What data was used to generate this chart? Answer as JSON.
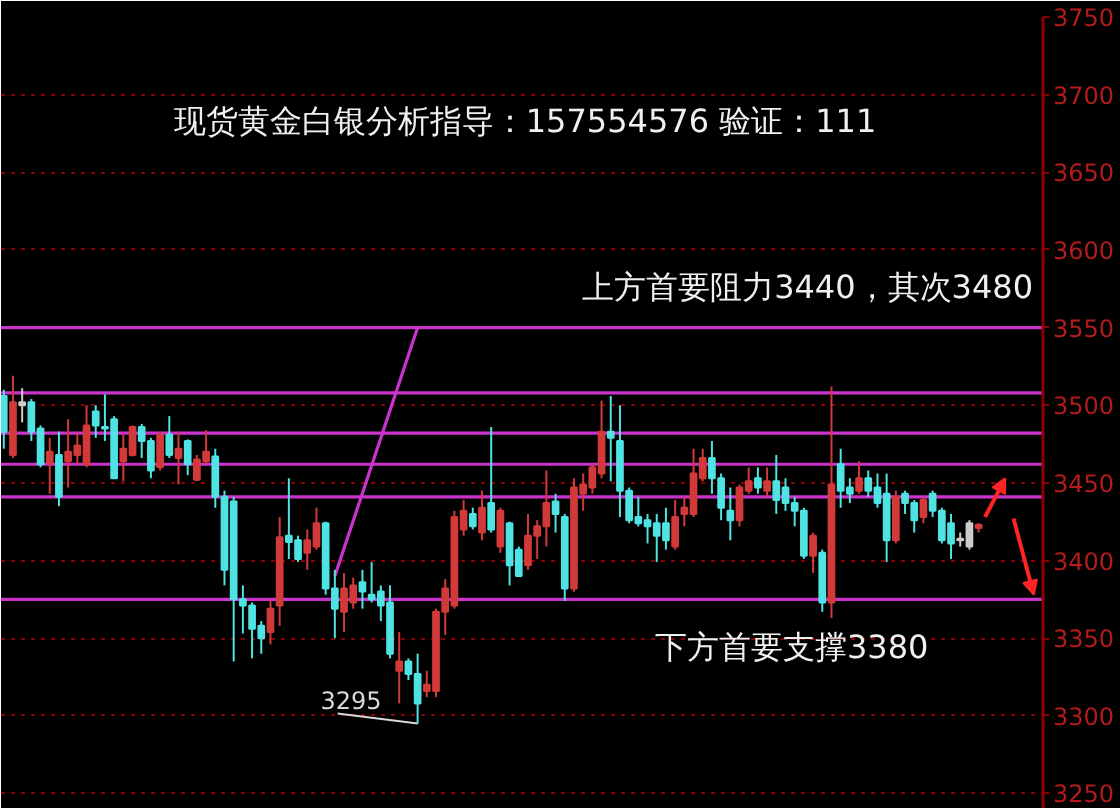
{
  "chart_data": {
    "type": "candlestick",
    "categories": [
      null,
      null,
      null,
      null,
      null,
      null,
      null,
      null,
      null,
      null,
      null,
      null,
      null,
      null,
      null,
      null,
      null,
      null,
      null,
      null,
      null,
      null,
      null,
      null,
      null,
      null,
      null,
      null,
      null,
      null,
      null,
      null,
      null,
      null,
      null,
      null,
      null,
      null,
      null,
      null,
      null,
      null,
      null,
      null,
      null,
      null,
      null,
      null,
      null,
      null,
      null,
      null,
      null,
      null,
      null,
      null,
      null,
      null,
      null,
      null,
      null,
      null,
      null,
      null,
      null,
      null,
      null,
      null,
      null,
      null,
      null,
      null,
      null,
      null,
      null,
      null,
      null,
      null,
      null,
      null,
      null,
      null,
      null,
      null,
      null,
      null,
      null,
      null,
      null,
      null,
      null,
      null,
      null,
      null,
      null,
      null,
      null,
      null,
      null,
      null,
      null,
      null,
      null,
      null,
      null,
      null,
      null
    ],
    "ohlc": [
      [
        3506,
        3510,
        3472,
        3483
      ],
      [
        3468,
        3519,
        3466,
        3502
      ],
      [
        3502,
        3511,
        3489,
        3500
      ],
      [
        3502,
        3504,
        3477,
        3483
      ],
      [
        3485,
        3487,
        3460,
        3462
      ],
      [
        3463,
        3479,
        3443,
        3470
      ],
      [
        3468,
        3483,
        3435,
        3441
      ],
      [
        3464,
        3491,
        3447,
        3470
      ],
      [
        3468,
        3482,
        3462,
        3474
      ],
      [
        3462,
        3500,
        3460,
        3487
      ],
      [
        3496,
        3500,
        3479,
        3487
      ],
      [
        3486,
        3507,
        3477,
        3485
      ],
      [
        3491,
        3493,
        3453,
        3453
      ],
      [
        3464,
        3481,
        3451,
        3472
      ],
      [
        3468,
        3487,
        3467,
        3486
      ],
      [
        3486,
        3488,
        3466,
        3477
      ],
      [
        3477,
        3479,
        3453,
        3458
      ],
      [
        3460,
        3483,
        3458,
        3481
      ],
      [
        3481,
        3493,
        3466,
        3468
      ],
      [
        3466,
        3483,
        3449,
        3472
      ],
      [
        3477,
        3478,
        3455,
        3462
      ],
      [
        3452,
        3468,
        3451,
        3465
      ],
      [
        3464,
        3484,
        3462,
        3470
      ],
      [
        3467,
        3472,
        3434,
        3441
      ],
      [
        3441,
        3445,
        3384,
        3394
      ],
      [
        3438,
        3441,
        3335,
        3375
      ],
      [
        3375,
        3384,
        3353,
        3371
      ],
      [
        3371,
        3373,
        3337,
        3356
      ],
      [
        3358,
        3361,
        3340,
        3350
      ],
      [
        3354,
        3375,
        3346,
        3369
      ],
      [
        3371,
        3428,
        3358,
        3415
      ],
      [
        3416,
        3453,
        3401,
        3412
      ],
      [
        3413,
        3416,
        3399,
        3401
      ],
      [
        3405,
        3420,
        3394,
        3413
      ],
      [
        3409,
        3434,
        3407,
        3424
      ],
      [
        3424,
        3425,
        3378,
        3382
      ],
      [
        3382,
        3394,
        3350,
        3369
      ],
      [
        3367,
        3392,
        3354,
        3382
      ],
      [
        3373,
        3389,
        3369,
        3384
      ],
      [
        3386,
        3394,
        3369,
        3380
      ],
      [
        3378,
        3399,
        3373,
        3375
      ],
      [
        3380,
        3384,
        3361,
        3371
      ],
      [
        3373,
        3384,
        3337,
        3340
      ],
      [
        3329,
        3354,
        3308,
        3335
      ],
      [
        3335,
        3337,
        3323,
        3327
      ],
      [
        3327,
        3340,
        3295,
        3308
      ],
      [
        3316,
        3329,
        3312,
        3320
      ],
      [
        3316,
        3369,
        3312,
        3367
      ],
      [
        3367,
        3388,
        3352,
        3382
      ],
      [
        3371,
        3432,
        3369,
        3428
      ],
      [
        3420,
        3439,
        3416,
        3432
      ],
      [
        3430,
        3434,
        3420,
        3422
      ],
      [
        3418,
        3445,
        3413,
        3434
      ],
      [
        3437,
        3486,
        3418,
        3420
      ],
      [
        3409,
        3434,
        3405,
        3432
      ],
      [
        3424,
        3425,
        3384,
        3397
      ],
      [
        3407,
        3409,
        3390,
        3390
      ],
      [
        3397,
        3430,
        3394,
        3416
      ],
      [
        3416,
        3426,
        3401,
        3422
      ],
      [
        3422,
        3458,
        3409,
        3437
      ],
      [
        3438,
        3443,
        3418,
        3430
      ],
      [
        3428,
        3430,
        3374,
        3382
      ],
      [
        3382,
        3453,
        3380,
        3447
      ],
      [
        3443,
        3456,
        3432,
        3449
      ],
      [
        3447,
        3462,
        3443,
        3460
      ],
      [
        3456,
        3503,
        3453,
        3483
      ],
      [
        3483,
        3506,
        3451,
        3479
      ],
      [
        3477,
        3500,
        3428,
        3445
      ],
      [
        3445,
        3447,
        3424,
        3426
      ],
      [
        3428,
        3441,
        3422,
        3424
      ],
      [
        3426,
        3430,
        3411,
        3422
      ],
      [
        3424,
        3430,
        3399,
        3416
      ],
      [
        3424,
        3434,
        3407,
        3413
      ],
      [
        3409,
        3439,
        3407,
        3428
      ],
      [
        3430,
        3441,
        3422,
        3434
      ],
      [
        3430,
        3472,
        3428,
        3456
      ],
      [
        3453,
        3472,
        3451,
        3466
      ],
      [
        3466,
        3477,
        3443,
        3453
      ],
      [
        3453,
        3456,
        3426,
        3434
      ],
      [
        3432,
        3447,
        3413,
        3426
      ],
      [
        3426,
        3449,
        3422,
        3447
      ],
      [
        3445,
        3460,
        3443,
        3451
      ],
      [
        3453,
        3460,
        3443,
        3447
      ],
      [
        3445,
        3460,
        3441,
        3451
      ],
      [
        3451,
        3468,
        3430,
        3439
      ],
      [
        3447,
        3453,
        3432,
        3437
      ],
      [
        3437,
        3441,
        3422,
        3432
      ],
      [
        3432,
        3434,
        3401,
        3403
      ],
      [
        3403,
        3418,
        3392,
        3416
      ],
      [
        3405,
        3407,
        3367,
        3373
      ],
      [
        3373,
        3512,
        3363,
        3449
      ],
      [
        3462,
        3472,
        3434,
        3445
      ],
      [
        3447,
        3453,
        3437,
        3443
      ],
      [
        3445,
        3464,
        3443,
        3453
      ],
      [
        3453,
        3458,
        3441,
        3445
      ],
      [
        3447,
        3456,
        3434,
        3437
      ],
      [
        3443,
        3456,
        3399,
        3413
      ],
      [
        3413,
        3445,
        3411,
        3441
      ],
      [
        3443,
        3445,
        3430,
        3437
      ],
      [
        3437,
        3439,
        3418,
        3426
      ],
      [
        3428,
        3441,
        3424,
        3439
      ],
      [
        3443,
        3445,
        3428,
        3432
      ],
      [
        3432,
        3434,
        3411,
        3413
      ],
      [
        3424,
        3430,
        3401,
        3411
      ],
      [
        3414,
        3418,
        3409,
        3413
      ],
      [
        3424,
        3426,
        3407,
        3409
      ],
      [
        3421,
        3424,
        3418,
        3423
      ]
    ],
    "colors": [
      "#4fe3e3",
      "#d23a3a",
      "#cccccc",
      "#4fe3e3",
      "#4fe3e3",
      "#d23a3a",
      "#4fe3e3",
      "#d23a3a",
      "#d23a3a",
      "#d23a3a",
      "#4fe3e3",
      "#4fe3e3",
      "#4fe3e3",
      "#d23a3a",
      "#d23a3a",
      "#4fe3e3",
      "#4fe3e3",
      "#d23a3a",
      "#4fe3e3",
      "#d23a3a",
      "#4fe3e3",
      "#d23a3a",
      "#d23a3a",
      "#4fe3e3",
      "#4fe3e3",
      "#4fe3e3",
      "#4fe3e3",
      "#4fe3e3",
      "#4fe3e3",
      "#d23a3a",
      "#d23a3a",
      "#4fe3e3",
      "#4fe3e3",
      "#d23a3a",
      "#d23a3a",
      "#4fe3e3",
      "#4fe3e3",
      "#d23a3a",
      "#d23a3a",
      "#4fe3e3",
      "#4fe3e3",
      "#4fe3e3",
      "#4fe3e3",
      "#d23a3a",
      "#4fe3e3",
      "#4fe3e3",
      "#d23a3a",
      "#d23a3a",
      "#d23a3a",
      "#d23a3a",
      "#d23a3a",
      "#4fe3e3",
      "#d23a3a",
      "#4fe3e3",
      "#d23a3a",
      "#4fe3e3",
      "#4fe3e3",
      "#d23a3a",
      "#d23a3a",
      "#d23a3a",
      "#4fe3e3",
      "#4fe3e3",
      "#d23a3a",
      "#d23a3a",
      "#d23a3a",
      "#d23a3a",
      "#4fe3e3",
      "#4fe3e3",
      "#4fe3e3",
      "#4fe3e3",
      "#4fe3e3",
      "#4fe3e3",
      "#4fe3e3",
      "#d23a3a",
      "#d23a3a",
      "#d23a3a",
      "#d23a3a",
      "#4fe3e3",
      "#4fe3e3",
      "#4fe3e3",
      "#d23a3a",
      "#d23a3a",
      "#4fe3e3",
      "#d23a3a",
      "#4fe3e3",
      "#4fe3e3",
      "#4fe3e3",
      "#4fe3e3",
      "#d23a3a",
      "#4fe3e3",
      "#d23a3a",
      "#4fe3e3",
      "#4fe3e3",
      "#d23a3a",
      "#4fe3e3",
      "#4fe3e3",
      "#4fe3e3",
      "#d23a3a",
      "#4fe3e3",
      "#4fe3e3",
      "#d23a3a",
      "#4fe3e3",
      "#4fe3e3",
      "#4fe3e3",
      "#cccccc",
      "#cccccc",
      "#d23a3a"
    ],
    "series": [
      {
        "type": "line",
        "color": "#cc33cc",
        "values": [
          null,
          null,
          null,
          null,
          null,
          null,
          null,
          null,
          null,
          null,
          null,
          null,
          null,
          null,
          null,
          null,
          null,
          null,
          null,
          null,
          null,
          null,
          null,
          null,
          null,
          null,
          null,
          null,
          null,
          null,
          null,
          null,
          null,
          null,
          null,
          null,
          3390,
          null,
          null,
          null,
          null,
          null,
          null,
          null,
          null,
          3550,
          null,
          null,
          null,
          null,
          null,
          null,
          null,
          null,
          null,
          null,
          null,
          null,
          null,
          null,
          null,
          null,
          null,
          null,
          null,
          null,
          null,
          null,
          null,
          null,
          null,
          null,
          null,
          null,
          null,
          null,
          null,
          null,
          null,
          null,
          null,
          null,
          null,
          null,
          null,
          null,
          null,
          null,
          null,
          null,
          null,
          null,
          null,
          null,
          null,
          null,
          null,
          null,
          null,
          null,
          null,
          null,
          null,
          null,
          null,
          null,
          null
        ]
      }
    ],
    "ylim": [
      3240,
      3750
    ],
    "yticks": [
      3250,
      3300,
      3350,
      3400,
      3450,
      3500,
      3550,
      3600,
      3650,
      3700,
      3750
    ],
    "grid": "y",
    "tick_labels": "y",
    "ref_lines": [
      {
        "axis": "y",
        "value": 3550,
        "color": "#cc33cc"
      },
      {
        "axis": "y",
        "value": 3508,
        "color": "#cc33cc"
      },
      {
        "axis": "y",
        "value": 3482,
        "color": "#cc33cc"
      },
      {
        "axis": "y",
        "value": 3462,
        "color": "#cc33cc"
      },
      {
        "axis": "y",
        "value": 3441,
        "color": "#cc33cc"
      },
      {
        "axis": "y",
        "value": 3375,
        "color": "#cc33cc"
      }
    ],
    "annotations": [
      "现货黄金白银分析指导：157554576 验证：111",
      "上方首要阻力3440，其次3480",
      "下方首要支撑3380",
      "3295"
    ]
  }
}
